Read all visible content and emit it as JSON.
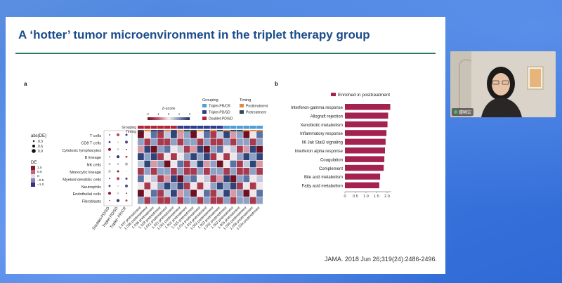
{
  "slide": {
    "title": "A ‘hotter’ tumor microenvironment in the triplet therapy group",
    "citation": "JAMA. 2018 Jun 26;319(24):2486-2496.",
    "panel_a": {
      "letter": "a",
      "zscore_title": "Z-score",
      "zscore_ticks": [
        "-2",
        "-1",
        "0",
        "1",
        "2"
      ],
      "grouping_title": "Grouping",
      "grouping_items": [
        {
          "label": "Triplet-PR/CR",
          "color": "#4f9ed6"
        },
        {
          "label": "Triplet-PD/SD",
          "color": "#2d3f8f"
        },
        {
          "label": "Doublet-PD/SD",
          "color": "#b3263a"
        }
      ],
      "timing_title": "Timing",
      "timing_items": [
        {
          "label": "Posttreatment",
          "color": "#e8883a"
        },
        {
          "label": "Pretreatment",
          "color": "#34495e"
        }
      ],
      "absde_title": "abs(DE)",
      "absde_items": [
        "0.3",
        "0.6",
        "0.9"
      ],
      "de_title": "DE",
      "de_ticks": [
        "1.0",
        "0.5",
        "0",
        "−0.5",
        "−1.0"
      ],
      "row_labels": [
        "T cells",
        "CD8 T cells",
        "Cytotoxic lymphocytes",
        "B lineage",
        "NK cells",
        "Monocytic lineage",
        "Myeloid dendritic cells",
        "Neutrophils",
        "Endothelial cells",
        "Fibroblasts"
      ],
      "col_groups": [
        "Doublet-PD/SD",
        "Triplet-PD/SD",
        "Triplet- PR/CR"
      ],
      "top_bar_labels": [
        "Grouping",
        "Timing"
      ],
      "sample_labels": [
        "1.037 pretreatment",
        "1.036 posttreatment",
        "1.036 pretreatment",
        "1.028 pretreatment",
        "1.021 posttreatment",
        "1.021 pretreatment",
        "1.001 posttreatment",
        "1.001 pretreatment",
        "1.015 pretreatment",
        "1.014 posttreatment",
        "1.014 pretreatment",
        "1.003 posttreatment",
        "1.003 pretreatment",
        "1.002 posttreatment",
        "1.002 pretreatment",
        "1.005 pretreatment",
        "1.034 posttreatment",
        "1.026 posttreatment",
        "1.024 posttreatment"
      ]
    },
    "panel_b": {
      "letter": "b",
      "legend": "Enriched in posttreatment",
      "bar_color": "#a3224f"
    }
  },
  "chart_data": {
    "type": "bar",
    "categories": [
      "Interferon-gamma response",
      "Allograft rejection",
      "Xenobiotic metabolism",
      "Inflammatory response",
      "Il6 Jak Stat3 signaling",
      "Interferon alpha response",
      "Coagulation",
      "Complement",
      "Bile acid metabolism",
      "Fatty acid metabolism"
    ],
    "values": [
      2.15,
      2.05,
      2.02,
      1.97,
      1.93,
      1.9,
      1.87,
      1.84,
      1.67,
      1.63
    ],
    "title": "",
    "xlabel": "",
    "ylabel": "",
    "xlim": [
      0,
      2.2
    ],
    "x_ticks": [
      "0",
      "0.5",
      "1.0",
      "1.5",
      "2.0"
    ],
    "orientation": "horizontal"
  },
  "webcam": {
    "name": "鍾曉宏"
  }
}
